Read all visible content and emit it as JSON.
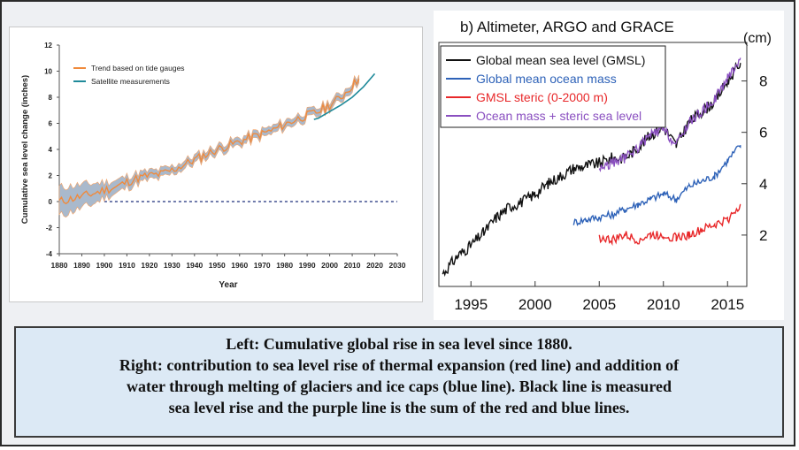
{
  "chart_data": [
    {
      "type": "line",
      "xlabel": "Year",
      "ylabel": "Cumulative sea level change (inches)",
      "xlim": [
        1880,
        2030
      ],
      "ylim": [
        -4,
        12
      ],
      "xticks": [
        "1880",
        "1890",
        "1900",
        "1910",
        "1920",
        "1930",
        "1940",
        "1950",
        "1960",
        "1970",
        "1980",
        "1990",
        "2000",
        "2010",
        "2020",
        "2030"
      ],
      "yticks": [
        "-4",
        "-2",
        "0",
        "2",
        "4",
        "6",
        "8",
        "10",
        "12"
      ],
      "reference_line": 0,
      "legend_position": "top-left",
      "series": [
        {
          "name": "Trend based on tide gauges",
          "color": "#f08a3c",
          "band_color": "#a9b9cc",
          "x": [
            1880,
            1885,
            1890,
            1895,
            1900,
            1905,
            1910,
            1915,
            1920,
            1925,
            1930,
            1935,
            1940,
            1945,
            1950,
            1955,
            1960,
            1965,
            1970,
            1975,
            1980,
            1985,
            1990,
            1995,
            2000,
            2005,
            2010,
            2013
          ],
          "y": [
            0,
            0.2,
            0.4,
            0.6,
            0.9,
            1.1,
            1.5,
            1.8,
            2.0,
            2.1,
            2.4,
            2.8,
            3.2,
            3.6,
            4.0,
            4.3,
            4.6,
            4.9,
            5.2,
            5.5,
            5.9,
            6.3,
            6.6,
            6.9,
            7.4,
            8.0,
            8.9,
            9.4
          ],
          "band": [
            1.1,
            1.0,
            0.9,
            0.8,
            0.6,
            0.5,
            0.45,
            0.4,
            0.35,
            0.35,
            0.3,
            0.3,
            0.3,
            0.3,
            0.3,
            0.3,
            0.3,
            0.3,
            0.3,
            0.3,
            0.3,
            0.3,
            0.3,
            0.3,
            0.3,
            0.3,
            0.3,
            0.3
          ]
        },
        {
          "name": "Satellite measurements",
          "color": "#1f8a9a",
          "x": [
            1993,
            1995,
            2000,
            2005,
            2010,
            2015,
            2020
          ],
          "y": [
            6.3,
            6.4,
            6.9,
            7.4,
            8.0,
            8.8,
            9.8
          ]
        }
      ]
    },
    {
      "type": "line",
      "title": "b)  Altimeter, ARGO and GRACE",
      "yunit": "(cm)",
      "xlim": [
        1992.5,
        2016.5
      ],
      "ylim": [
        0,
        9.5
      ],
      "xticks": [
        "1995",
        "2000",
        "2005",
        "2010",
        "2015"
      ],
      "yticks": [
        "2",
        "4",
        "6",
        "8"
      ],
      "legend_position": "top-left",
      "series": [
        {
          "name": "Global mean sea level (GMSL)",
          "color": "#111111",
          "x": [
            1992.8,
            1994,
            1995,
            1996,
            1997,
            1998,
            1999,
            2000,
            2001,
            2002,
            2003,
            2004,
            2005,
            2006,
            2007,
            2008,
            2009,
            2010,
            2011,
            2012,
            2013,
            2014,
            2015,
            2016
          ],
          "y": [
            0.5,
            1.2,
            1.6,
            2.1,
            2.7,
            3.1,
            3.3,
            3.6,
            4.0,
            4.3,
            4.6,
            4.7,
            4.8,
            5.0,
            5.0,
            5.4,
            5.9,
            6.2,
            5.5,
            6.4,
            6.8,
            7.2,
            8.0,
            8.7
          ]
        },
        {
          "name": "Global mean ocean mass",
          "color": "#2e62b8",
          "x": [
            2003,
            2004,
            2005,
            2006,
            2007,
            2008,
            2009,
            2010,
            2011,
            2012,
            2013,
            2014,
            2015,
            2016
          ],
          "y": [
            2.5,
            2.6,
            2.7,
            2.8,
            3.0,
            3.2,
            3.4,
            3.6,
            3.4,
            3.9,
            4.1,
            4.3,
            4.9,
            5.5
          ]
        },
        {
          "name": "GMSL steric (0-2000 m)",
          "color": "#e8282a",
          "x": [
            2005,
            2006,
            2007,
            2008,
            2009,
            2010,
            2011,
            2012,
            2013,
            2014,
            2015,
            2016
          ],
          "y": [
            1.9,
            1.8,
            2.0,
            1.8,
            2.0,
            2.0,
            1.9,
            2.0,
            2.2,
            2.4,
            2.6,
            3.2
          ]
        },
        {
          "name": "Ocean mass + steric sea level",
          "color": "#8a4fc0",
          "x": [
            2005,
            2006,
            2007,
            2008,
            2009,
            2010,
            2011,
            2012,
            2013,
            2014,
            2015,
            2016
          ],
          "y": [
            4.6,
            4.8,
            5.0,
            5.4,
            5.9,
            6.1,
            5.5,
            6.4,
            6.8,
            7.3,
            8.1,
            8.9
          ]
        }
      ]
    }
  ],
  "caption": {
    "line1": "Left: Cumulative global rise in sea level since 1880.",
    "line2": "Right: contribution to sea level rise of thermal expansion (red line) and addition of",
    "line3": "water through melting of glaciers and ice caps (blue line).  Black line is measured",
    "line4": "sea level rise and the purple line is the sum of the red and blue lines."
  }
}
